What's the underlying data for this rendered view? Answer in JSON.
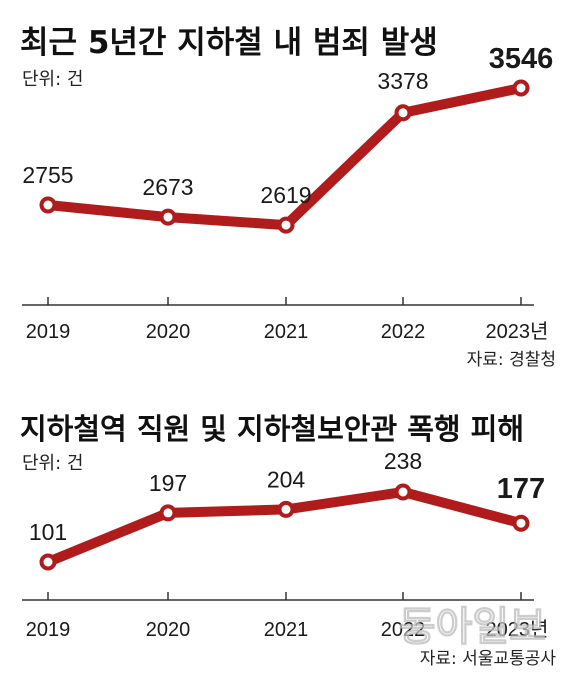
{
  "chart_data": [
    {
      "type": "line",
      "title": "최근 5년간 지하철 내 범죄 발생",
      "unit_label": "단위: 건",
      "categories": [
        "2019",
        "2020",
        "2021",
        "2022",
        "2023"
      ],
      "x_unit_suffix": "년",
      "values": [
        2755,
        2673,
        2619,
        3378,
        3546
      ],
      "value_labels": [
        "2755",
        "2673",
        "2619",
        "3378",
        "3546"
      ],
      "source": "자료: 경찰청",
      "grid": false,
      "legend": "none",
      "series_color": "#b01c1c",
      "highlight_color": "#c4161c",
      "highlight_index": 4
    },
    {
      "type": "line",
      "title": "지하철역 직원 및 지하철보안관 폭행 피해",
      "unit_label": "단위: 건",
      "categories": [
        "2019",
        "2020",
        "2021",
        "2022",
        "2023"
      ],
      "x_unit_suffix": "년",
      "values": [
        101,
        197,
        204,
        238,
        177
      ],
      "value_labels": [
        "101",
        "197",
        "204",
        "238",
        "177"
      ],
      "source": "자료: 서울교통공사",
      "grid": false,
      "legend": "none",
      "series_color": "#b01c1c",
      "highlight_color": "#c4161c",
      "highlight_index": 4
    }
  ],
  "watermark": "동아일보"
}
